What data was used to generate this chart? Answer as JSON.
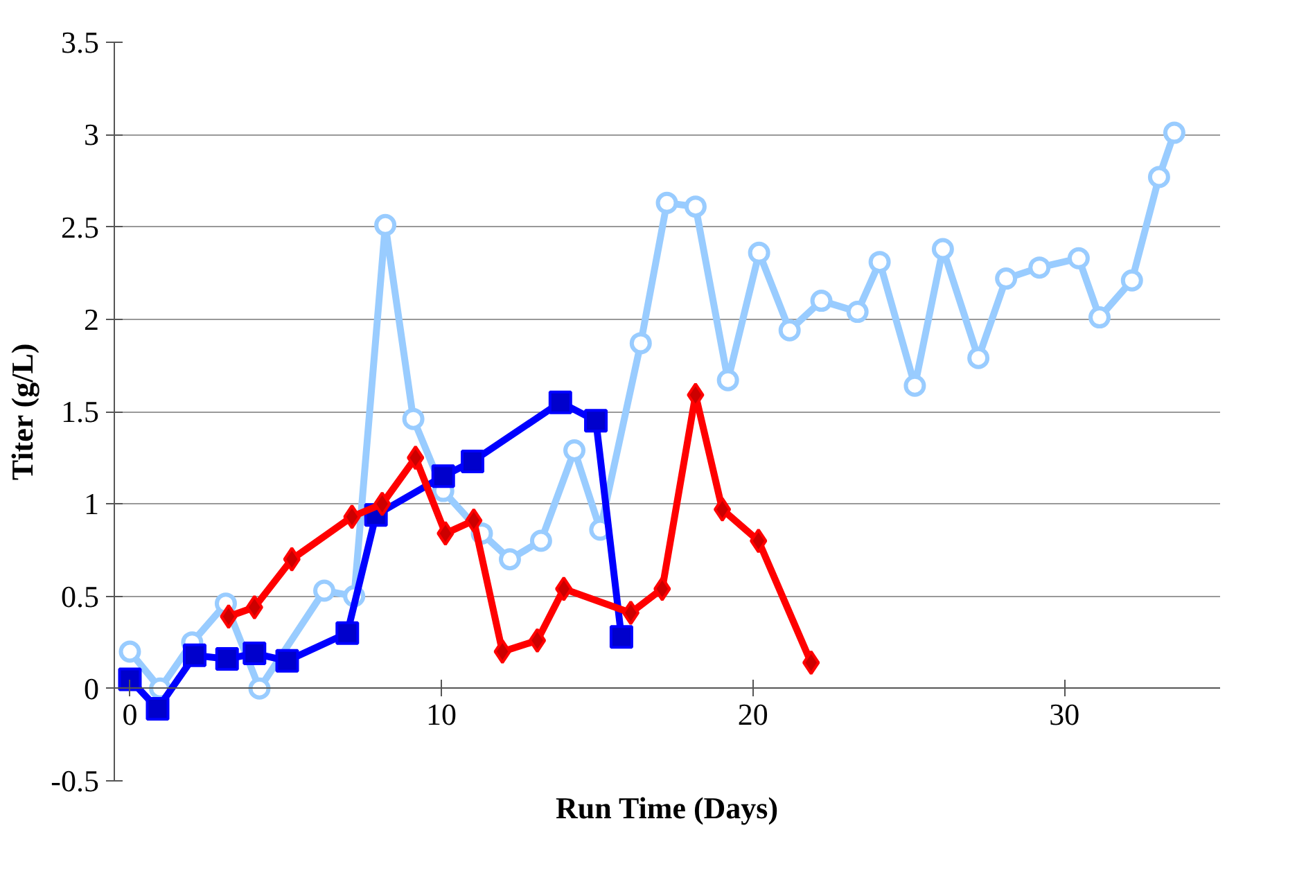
{
  "chart_data": {
    "type": "line",
    "xlabel": "Run Time (Days)",
    "ylabel": "Titer (g/L)",
    "xlim": [
      -0.5,
      35
    ],
    "xticks": [
      0,
      10,
      20,
      30
    ],
    "ylim": [
      -0.5,
      3.5
    ],
    "yticks": [
      -0.5,
      0,
      0.5,
      1,
      1.5,
      2,
      2.5,
      3,
      3.5
    ],
    "grid": "y",
    "line_style": "solid",
    "series": [
      {
        "color": "#99ccff",
        "marker": "circle",
        "x": [
          0,
          0.97,
          2.0,
          3.08,
          4.16,
          6.24,
          7.2,
          8.2,
          9.1,
          10.06,
          11.3,
          12.2,
          13.2,
          14.27,
          15.1,
          16.4,
          17.24,
          18.16,
          19.2,
          20.2,
          21.18,
          22.2,
          23.36,
          24.07,
          25.2,
          26.1,
          27.24,
          28.13,
          29.2,
          30.46,
          31.13,
          32.17,
          33.04,
          33.53
        ],
        "values": [
          0.2,
          0.0,
          0.25,
          0.46,
          0.0,
          0.53,
          0.5,
          2.51,
          1.46,
          1.07,
          0.84,
          0.7,
          0.8,
          1.29,
          0.86,
          1.87,
          2.63,
          2.61,
          1.67,
          2.36,
          1.94,
          2.1,
          2.04,
          2.31,
          1.64,
          2.38,
          1.79,
          2.22,
          2.28,
          2.33,
          2.01,
          2.21,
          2.77,
          3.01
        ]
      },
      {
        "color": "#0000ff",
        "marker": "square",
        "x": [
          0,
          0.89,
          2.08,
          3.12,
          4.0,
          5.05,
          6.98,
          7.9,
          10.06,
          11.0,
          13.82,
          14.96,
          15.78
        ],
        "values": [
          0.05,
          -0.11,
          0.18,
          0.16,
          0.19,
          0.15,
          0.3,
          0.94,
          1.15,
          1.23,
          1.55,
          1.45,
          0.28
        ]
      },
      {
        "color": "#ff0000",
        "marker": "diamond",
        "x": [
          3.17,
          4.0,
          5.2,
          7.13,
          8.1,
          9.17,
          10.13,
          11.04,
          11.96,
          13.08,
          13.93,
          16.08,
          17.09,
          18.16,
          19.02,
          20.18,
          21.87
        ],
        "values": [
          0.39,
          0.44,
          0.7,
          0.93,
          1.0,
          1.25,
          0.84,
          0.91,
          0.2,
          0.26,
          0.54,
          0.41,
          0.54,
          1.59,
          0.97,
          0.8,
          0.14
        ]
      }
    ]
  }
}
